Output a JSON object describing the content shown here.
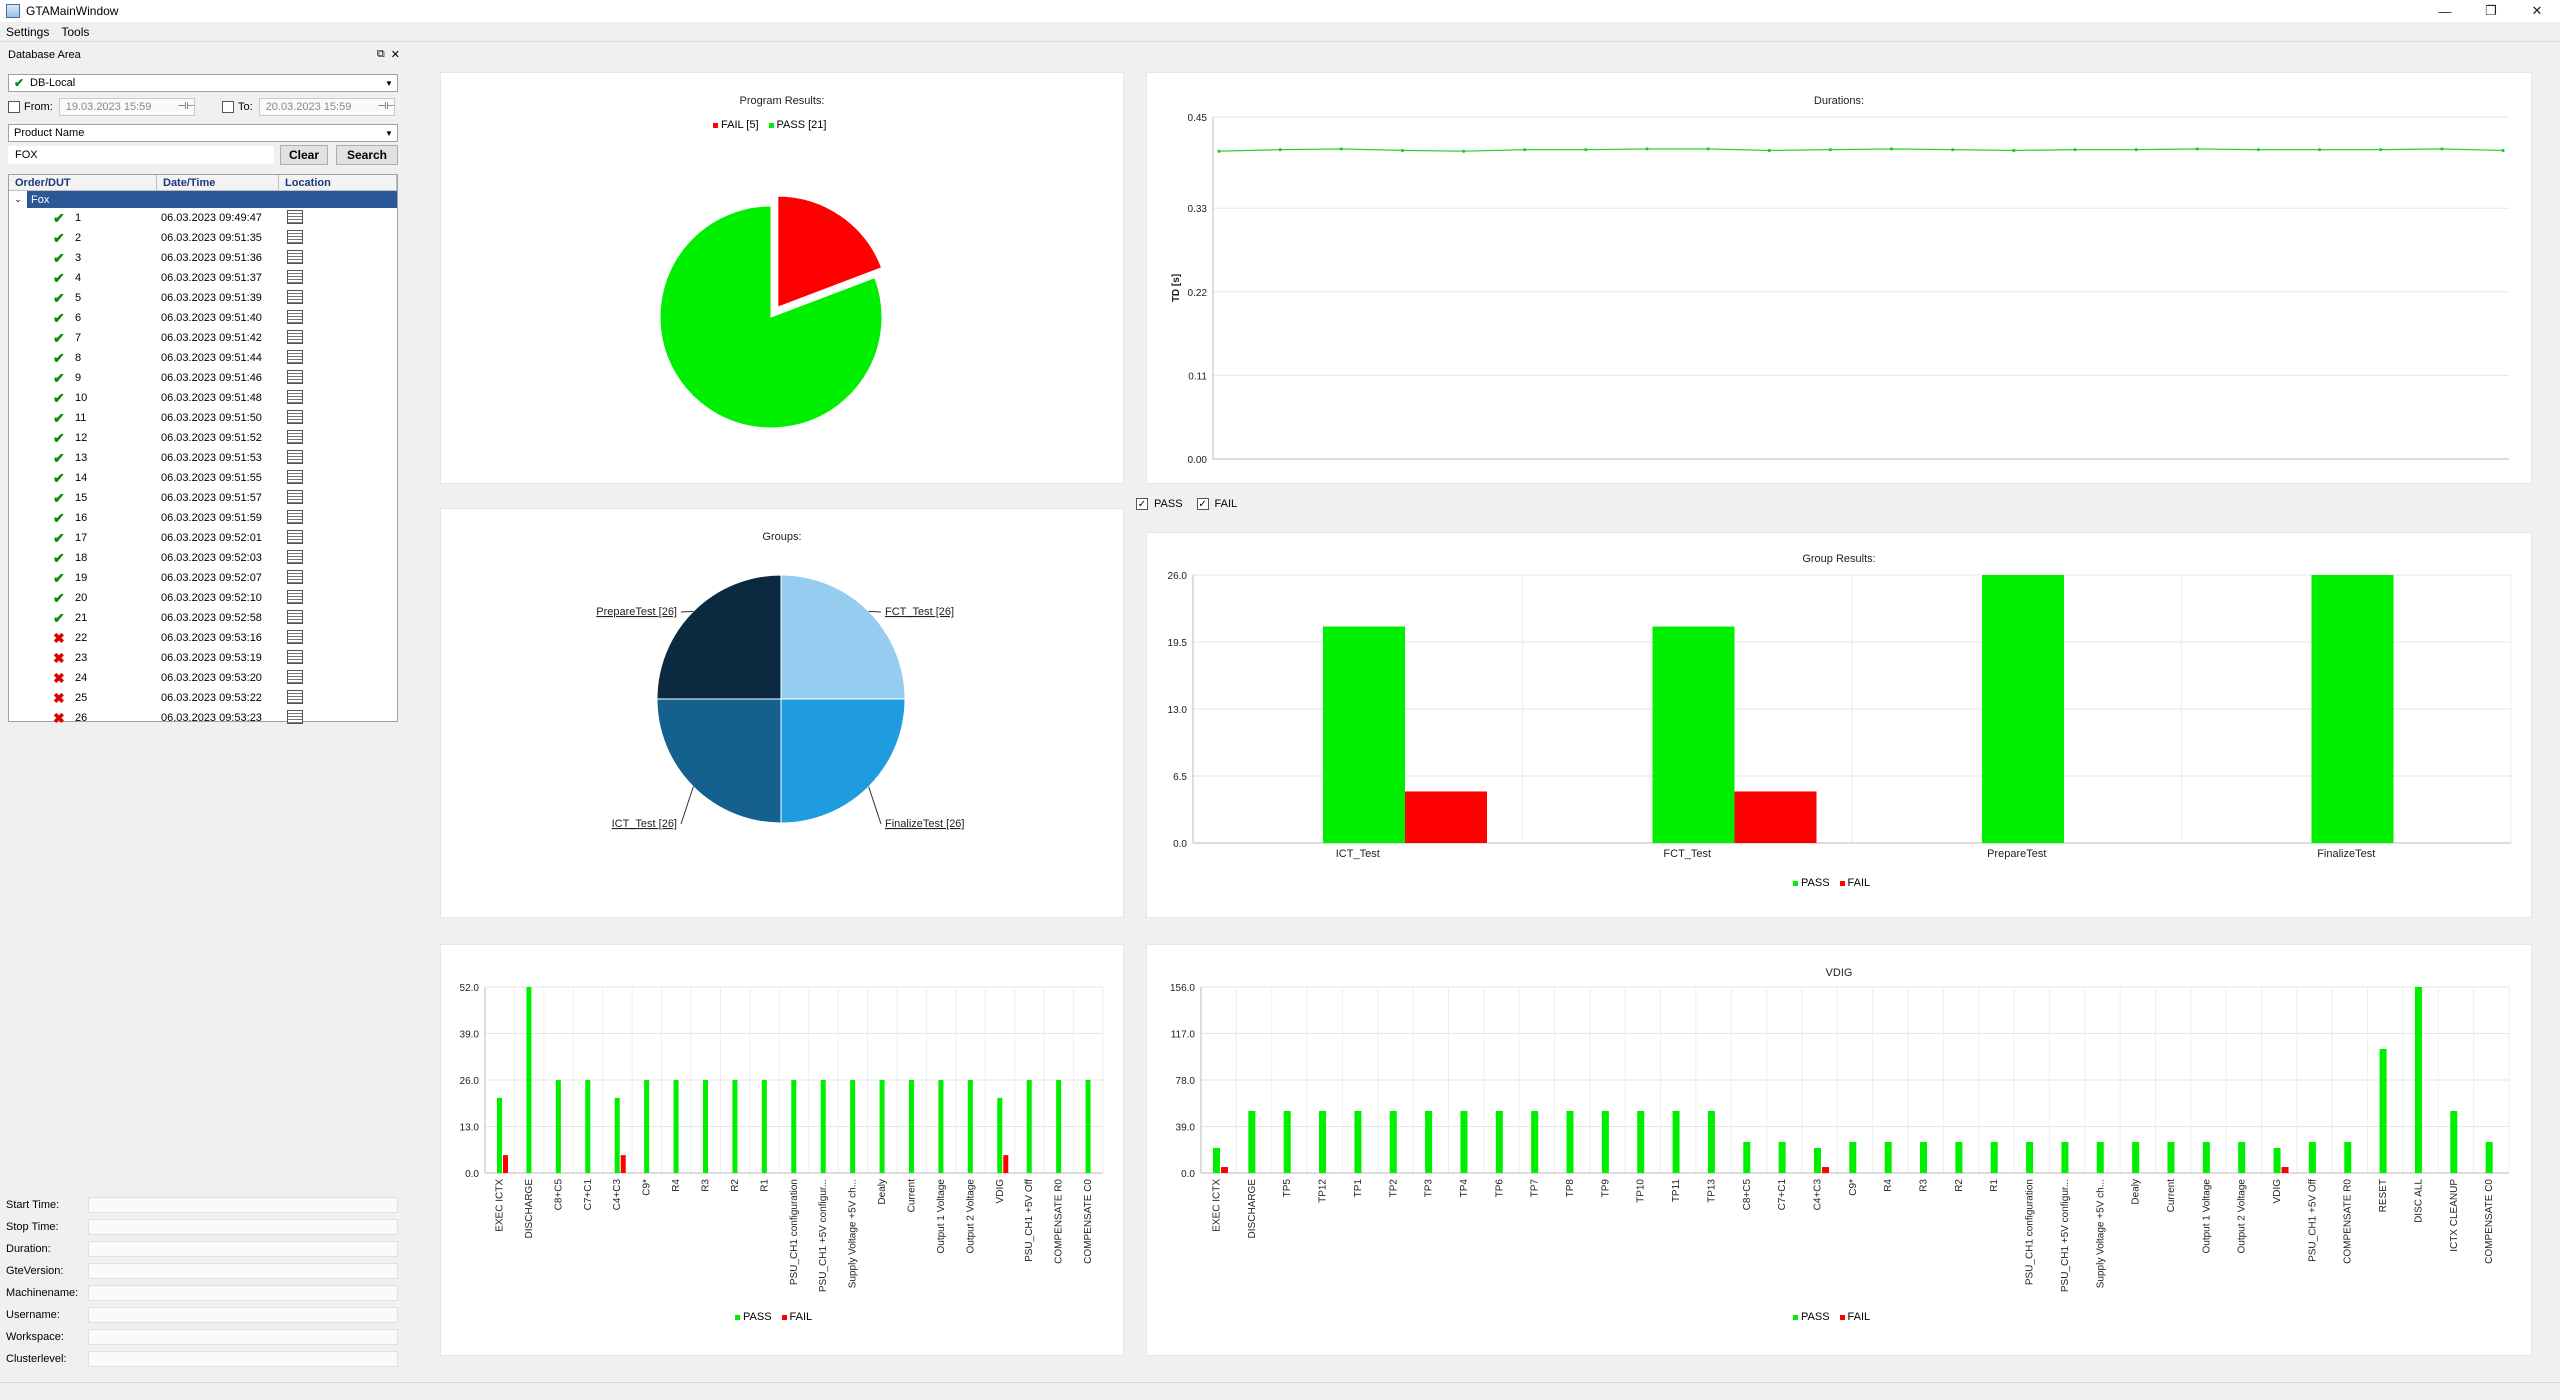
{
  "window": {
    "title": "GTAMainWindow",
    "minimize": "—",
    "restore": "❐",
    "close": "✕"
  },
  "menu": [
    {
      "label": "Settings"
    },
    {
      "label": "Tools"
    }
  ],
  "dock": {
    "title": "Database Area",
    "float_icon": "float-icon",
    "close_icon": "close-icon",
    "database": "DB-Local",
    "from_label": "From:",
    "from_value": "19.03.2023 15:59",
    "to_label": "To:",
    "to_value": "20.03.2023 15:59",
    "filter_field": "Product Name",
    "search_value": "FOX",
    "clear_label": "Clear",
    "search_label": "Search",
    "columns": [
      "Order/DUT",
      "Date/Time",
      "Location"
    ],
    "root": "Fox",
    "rows": [
      {
        "id": "1",
        "time": "06.03.2023 09:49:47",
        "status": "pass"
      },
      {
        "id": "2",
        "time": "06.03.2023 09:51:35",
        "status": "pass"
      },
      {
        "id": "3",
        "time": "06.03.2023 09:51:36",
        "status": "pass"
      },
      {
        "id": "4",
        "time": "06.03.2023 09:51:37",
        "status": "pass"
      },
      {
        "id": "5",
        "time": "06.03.2023 09:51:39",
        "status": "pass"
      },
      {
        "id": "6",
        "time": "06.03.2023 09:51:40",
        "status": "pass"
      },
      {
        "id": "7",
        "time": "06.03.2023 09:51:42",
        "status": "pass"
      },
      {
        "id": "8",
        "time": "06.03.2023 09:51:44",
        "status": "pass"
      },
      {
        "id": "9",
        "time": "06.03.2023 09:51:46",
        "status": "pass"
      },
      {
        "id": "10",
        "time": "06.03.2023 09:51:48",
        "status": "pass"
      },
      {
        "id": "11",
        "time": "06.03.2023 09:51:50",
        "status": "pass"
      },
      {
        "id": "12",
        "time": "06.03.2023 09:51:52",
        "status": "pass"
      },
      {
        "id": "13",
        "time": "06.03.2023 09:51:53",
        "status": "pass"
      },
      {
        "id": "14",
        "time": "06.03.2023 09:51:55",
        "status": "pass"
      },
      {
        "id": "15",
        "time": "06.03.2023 09:51:57",
        "status": "pass"
      },
      {
        "id": "16",
        "time": "06.03.2023 09:51:59",
        "status": "pass"
      },
      {
        "id": "17",
        "time": "06.03.2023 09:52:01",
        "status": "pass"
      },
      {
        "id": "18",
        "time": "06.03.2023 09:52:03",
        "status": "pass"
      },
      {
        "id": "19",
        "time": "06.03.2023 09:52:07",
        "status": "pass"
      },
      {
        "id": "20",
        "time": "06.03.2023 09:52:10",
        "status": "pass"
      },
      {
        "id": "21",
        "time": "06.03.2023 09:52:58",
        "status": "pass"
      },
      {
        "id": "22",
        "time": "06.03.2023 09:53:16",
        "status": "fail"
      },
      {
        "id": "23",
        "time": "06.03.2023 09:53:19",
        "status": "fail"
      },
      {
        "id": "24",
        "time": "06.03.2023 09:53:20",
        "status": "fail"
      },
      {
        "id": "25",
        "time": "06.03.2023 09:53:22",
        "status": "fail"
      },
      {
        "id": "26",
        "time": "06.03.2023 09:53:23",
        "status": "fail"
      }
    ],
    "info_labels": [
      "Start Time:",
      "Stop Time:",
      "Duration:",
      "GteVersion:",
      "Machinename:",
      "Username:",
      "Workspace:",
      "Clusterlevel:"
    ]
  },
  "filters": {
    "pass_label": "PASS",
    "fail_label": "FAIL"
  },
  "colors": {
    "pass": "#00ee00",
    "fail": "#ff0000",
    "line": "#22cc22"
  },
  "chart_data": [
    {
      "id": "program",
      "type": "pie",
      "title": "Program Results:",
      "legend": [
        "FAIL [5]",
        "PASS [21]"
      ],
      "slices": [
        {
          "name": "FAIL",
          "value": 5,
          "color": "#ff0000",
          "exploded": true
        },
        {
          "name": "PASS",
          "value": 21,
          "color": "#00ee00"
        }
      ]
    },
    {
      "id": "durations",
      "type": "line",
      "title": "Durations:",
      "ylabel": "TD [s]",
      "ylim": [
        0,
        0.45
      ],
      "yticks": [
        "0.00",
        "0.11",
        "0.22",
        "0.33",
        "0.45"
      ],
      "values": [
        0.405,
        0.407,
        0.408,
        0.406,
        0.405,
        0.407,
        0.407,
        0.408,
        0.408,
        0.406,
        0.407,
        0.408,
        0.407,
        0.406,
        0.407,
        0.407,
        0.408,
        0.407,
        0.407,
        0.407,
        0.408,
        0.406
      ]
    },
    {
      "id": "groups",
      "type": "pie",
      "title": "Groups:",
      "slices": [
        {
          "name": "FCT_Test [26]",
          "value": 26,
          "color": "#95ccef"
        },
        {
          "name": "FinalizeTest [26]",
          "value": 26,
          "color": "#1f9ce0"
        },
        {
          "name": "ICT_Test [26]",
          "value": 26,
          "color": "#14608f"
        },
        {
          "name": "PrepareTest [26]",
          "value": 26,
          "color": "#0b2a40"
        }
      ]
    },
    {
      "id": "group_results",
      "type": "bar",
      "title": "Group Results:",
      "ylim": [
        0,
        26
      ],
      "yticks": [
        "0.0",
        "6.5",
        "13.0",
        "19.5",
        "26.0"
      ],
      "categories": [
        "ICT_Test",
        "FCT_Test",
        "PrepareTest",
        "FinalizeTest"
      ],
      "series": [
        {
          "name": "PASS",
          "values": [
            21,
            21,
            26,
            26
          ]
        },
        {
          "name": "FAIL",
          "values": [
            5,
            5,
            0,
            0
          ]
        }
      ]
    },
    {
      "id": "steps1",
      "type": "bar",
      "title": "",
      "ylim": [
        0,
        52
      ],
      "yticks": [
        "0.0",
        "13.0",
        "26.0",
        "39.0",
        "52.0"
      ],
      "categories": [
        "EXEC ICTX",
        "DISCHARGE",
        "C8+C5",
        "C7+C1",
        "C4+C3",
        "C9*",
        "R4",
        "R3",
        "R2",
        "R1",
        "PSU_CH1 configuration",
        "PSU_CH1 +5V configur...",
        "Supply Voltage +5V ch...",
        "Dealy",
        "Current",
        "Output 1 Voltage",
        "Output 2 Voltage",
        "VDIG",
        "PSU_CH1 +5V Off",
        "COMPENSATE R0",
        "COMPENSATE C0"
      ],
      "series": [
        {
          "name": "PASS",
          "values": [
            21,
            52,
            26,
            26,
            21,
            26,
            26,
            26,
            26,
            26,
            26,
            26,
            26,
            26,
            26,
            26,
            26,
            21,
            26,
            26,
            26
          ]
        },
        {
          "name": "FAIL",
          "values": [
            5,
            0,
            0,
            0,
            5,
            0,
            0,
            0,
            0,
            0,
            0,
            0,
            0,
            0,
            0,
            0,
            0,
            5,
            0,
            0,
            0
          ]
        }
      ]
    },
    {
      "id": "steps2",
      "type": "bar",
      "title": "VDIG",
      "ylim": [
        0,
        156
      ],
      "yticks": [
        "0.0",
        "39.0",
        "78.0",
        "117.0",
        "156.0"
      ],
      "categories": [
        "EXEC ICTX",
        "DISCHARGE",
        "TP5",
        "TP12",
        "TP1",
        "TP2",
        "TP3",
        "TP4",
        "TP6",
        "TP7",
        "TP8",
        "TP9",
        "TP10",
        "TP11",
        "TP13",
        "C8+C5",
        "C7+C1",
        "C4+C3",
        "C9*",
        "R4",
        "R3",
        "R2",
        "R1",
        "PSU_CH1 configuration",
        "PSU_CH1 +5V configur...",
        "Supply Voltage +5V ch...",
        "Dealy",
        "Current",
        "Output 1 Voltage",
        "Output 2 Voltage",
        "VDIG",
        "PSU_CH1 +5V Off",
        "COMPENSATE R0",
        "RESET",
        "DISC ALL",
        "ICTX CLEANUP",
        "COMPENSATE C0"
      ],
      "series": [
        {
          "name": "PASS",
          "values": [
            21,
            52,
            52,
            52,
            52,
            52,
            52,
            52,
            52,
            52,
            52,
            52,
            52,
            52,
            52,
            26,
            26,
            21,
            26,
            26,
            26,
            26,
            26,
            26,
            26,
            26,
            26,
            26,
            26,
            26,
            21,
            26,
            26,
            104,
            156,
            52,
            26
          ]
        },
        {
          "name": "FAIL",
          "values": [
            5,
            0,
            0,
            0,
            0,
            0,
            0,
            0,
            0,
            0,
            0,
            0,
            0,
            0,
            0,
            0,
            0,
            5,
            0,
            0,
            0,
            0,
            0,
            0,
            0,
            0,
            0,
            0,
            0,
            0,
            5,
            0,
            0,
            0,
            0,
            0,
            0
          ]
        }
      ]
    }
  ]
}
